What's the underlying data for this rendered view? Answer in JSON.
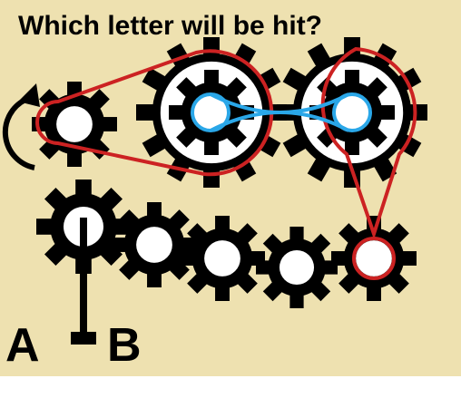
{
  "title": "Which letter will be hit?",
  "labels": {
    "left": "A",
    "right": "B"
  },
  "icons": {
    "rotation_arrow": "counterclockwise-arrow-icon",
    "gear": "gear-icon"
  },
  "colors": {
    "background": "#eee1b0",
    "gear": "#000000",
    "red_belt": "#cc2222",
    "blue_belt": "#2aa7e8",
    "text": "#000000"
  }
}
